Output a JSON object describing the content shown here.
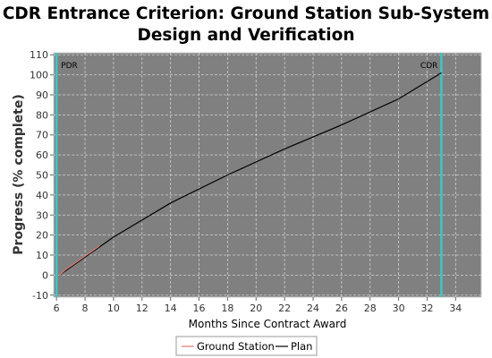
{
  "chart_data": {
    "type": "line",
    "title_lines": [
      "CDR Entrance Criterion: Ground Station Sub-System",
      "Design and Verification"
    ],
    "xlabel": "Months Since Contract Award",
    "ylabel": "Progress (% complete)",
    "xlim": [
      5.8,
      35.8
    ],
    "ylim": [
      -11,
      111
    ],
    "xticks": [
      6,
      8,
      10,
      12,
      14,
      16,
      18,
      20,
      22,
      24,
      26,
      28,
      30,
      32,
      34
    ],
    "yticks": [
      -10,
      0,
      10,
      20,
      30,
      40,
      50,
      60,
      70,
      80,
      90,
      100,
      110
    ],
    "grid": true,
    "legend_position": "bottom-center",
    "markers": [
      {
        "label": "PDR",
        "x": 6,
        "color": "#3ec6c6"
      },
      {
        "label": "CDR",
        "x": 33,
        "color": "#3ec6c6"
      }
    ],
    "series": [
      {
        "name": "Ground Station",
        "color": "#e07a6e",
        "x": [
          6.2,
          6.6,
          7.2,
          7.8,
          8.4,
          9.0
        ],
        "y": [
          0,
          2.5,
          5.5,
          8.5,
          11.5,
          14.5
        ]
      },
      {
        "name": "Plan",
        "color": "#000000",
        "x": [
          6.2,
          10,
          14,
          18,
          22,
          26,
          30,
          33
        ],
        "y": [
          0,
          19,
          36,
          50,
          63,
          75,
          88,
          101
        ]
      }
    ]
  }
}
